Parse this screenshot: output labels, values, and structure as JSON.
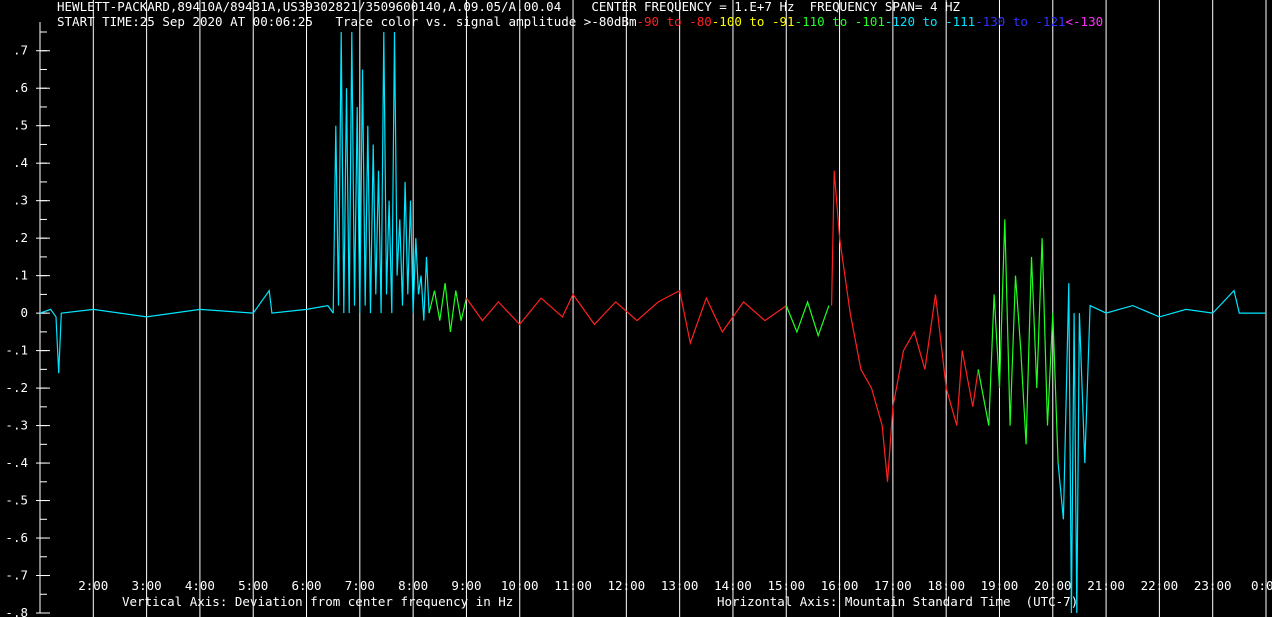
{
  "header": {
    "line1": "HEWLETT-PACKARD,89410A/89431A,US39302821/3509600140,A.09.05/A.00.04    CENTER FREQUENCY = 1.E+7 Hz  FREQUENCY SPAN= 4 HZ",
    "start_time": "START TIME:25 Sep 2020 AT 00:06:25",
    "color_key_label": "Trace color vs. signal amplitude",
    "color_key": [
      {
        "text": " >-80dBm",
        "color": "#ffffff"
      },
      {
        "text": "-90 to -80",
        "color": "#ff2020"
      },
      {
        "text": "-100 to -91",
        "color": "#ffff00"
      },
      {
        "text": "-110 to -101",
        "color": "#20ff20"
      },
      {
        "text": "-120 to -111",
        "color": "#00e5ff"
      },
      {
        "text": "-130 to -121",
        "color": "#3030ff"
      },
      {
        "text": "<-130",
        "color": "#ff30ff"
      }
    ]
  },
  "footer": {
    "vertical_axis": "Vertical Axis: Deviation from center frequency in Hz",
    "horizontal_axis": "Horizontal Axis: Mountain Standard Time  (UTC-7)"
  },
  "chart_data": {
    "type": "line",
    "ylim": [
      -0.8,
      0.75
    ],
    "xlim": [
      1.0,
      24.0
    ],
    "y_ticks": [
      ".7",
      ".6",
      ".5",
      ".4",
      ".3",
      ".2",
      ".1",
      "0",
      "-.1",
      "-.2",
      "-.3",
      "-.4",
      "-.5",
      "-.6",
      "-.7",
      "-.8"
    ],
    "y_tick_values": [
      0.7,
      0.6,
      0.5,
      0.4,
      0.3,
      0.2,
      0.1,
      0,
      -0.1,
      -0.2,
      -0.3,
      -0.4,
      -0.5,
      -0.6,
      -0.7,
      -0.8
    ],
    "x_ticks": [
      "2:00",
      "3:00",
      "4:00",
      "5:00",
      "6:00",
      "7:00",
      "8:00",
      "9:00",
      "10:00",
      "11:00",
      "12:00",
      "13:00",
      "14:00",
      "15:00",
      "16:00",
      "17:00",
      "18:00",
      "19:00",
      "20:00",
      "21:00",
      "22:00",
      "23:00",
      "0:00"
    ],
    "x_tick_values": [
      2,
      3,
      4,
      5,
      6,
      7,
      8,
      9,
      10,
      11,
      12,
      13,
      14,
      15,
      16,
      17,
      18,
      19,
      20,
      21,
      22,
      23,
      24
    ],
    "grid": "vertical",
    "trace_segments": [
      {
        "color": "#00e5ff",
        "points": [
          [
            1.0,
            0.0
          ],
          [
            1.2,
            0.01
          ],
          [
            1.3,
            -0.01
          ],
          [
            1.35,
            -0.16
          ],
          [
            1.4,
            0.0
          ],
          [
            2.0,
            0.01
          ],
          [
            3.0,
            -0.01
          ],
          [
            4.0,
            0.01
          ],
          [
            5.0,
            0.0
          ],
          [
            5.3,
            0.06
          ],
          [
            5.35,
            0.0
          ],
          [
            6.0,
            0.01
          ],
          [
            6.4,
            0.02
          ],
          [
            6.5,
            0.0
          ]
        ]
      },
      {
        "color": "#00e5ff",
        "points": [
          [
            6.5,
            0.0
          ],
          [
            6.55,
            0.5
          ],
          [
            6.6,
            0.02
          ],
          [
            6.65,
            0.75
          ],
          [
            6.7,
            0.0
          ],
          [
            6.75,
            0.6
          ],
          [
            6.8,
            0.0
          ],
          [
            6.85,
            0.75
          ],
          [
            6.9,
            0.02
          ],
          [
            6.95,
            0.55
          ],
          [
            7.0,
            0.0
          ],
          [
            7.05,
            0.65
          ],
          [
            7.1,
            0.02
          ],
          [
            7.15,
            0.5
          ],
          [
            7.2,
            0.0
          ],
          [
            7.25,
            0.45
          ],
          [
            7.3,
            0.05
          ],
          [
            7.35,
            0.38
          ],
          [
            7.4,
            0.0
          ],
          [
            7.45,
            0.75
          ],
          [
            7.5,
            0.05
          ],
          [
            7.55,
            0.3
          ],
          [
            7.6,
            0.0
          ],
          [
            7.65,
            0.75
          ],
          [
            7.7,
            0.1
          ],
          [
            7.75,
            0.25
          ],
          [
            7.8,
            0.02
          ],
          [
            7.85,
            0.35
          ],
          [
            7.9,
            0.05
          ],
          [
            7.95,
            0.3
          ],
          [
            8.0,
            0.0
          ],
          [
            8.05,
            0.2
          ],
          [
            8.1,
            0.05
          ],
          [
            8.15,
            0.1
          ],
          [
            8.2,
            -0.02
          ],
          [
            8.25,
            0.15
          ],
          [
            8.3,
            0.0
          ]
        ]
      },
      {
        "color": "#20ff20",
        "points": [
          [
            8.3,
            0.0
          ],
          [
            8.4,
            0.06
          ],
          [
            8.5,
            -0.02
          ],
          [
            8.6,
            0.08
          ],
          [
            8.7,
            -0.05
          ],
          [
            8.8,
            0.06
          ],
          [
            8.9,
            -0.02
          ],
          [
            9.0,
            0.04
          ]
        ]
      },
      {
        "color": "#ff2020",
        "points": [
          [
            9.0,
            0.04
          ],
          [
            9.3,
            -0.02
          ],
          [
            9.6,
            0.03
          ],
          [
            10.0,
            -0.03
          ],
          [
            10.4,
            0.04
          ],
          [
            10.8,
            -0.01
          ],
          [
            11.0,
            0.05
          ],
          [
            11.4,
            -0.03
          ],
          [
            11.8,
            0.03
          ],
          [
            12.2,
            -0.02
          ],
          [
            12.6,
            0.03
          ],
          [
            13.0,
            0.06
          ],
          [
            13.2,
            -0.08
          ],
          [
            13.5,
            0.04
          ],
          [
            13.8,
            -0.05
          ],
          [
            14.2,
            0.03
          ],
          [
            14.6,
            -0.02
          ],
          [
            15.0,
            0.02
          ]
        ]
      },
      {
        "color": "#20ff20",
        "points": [
          [
            15.0,
            0.02
          ],
          [
            15.2,
            -0.05
          ],
          [
            15.4,
            0.03
          ],
          [
            15.6,
            -0.06
          ],
          [
            15.8,
            0.02
          ]
        ]
      },
      {
        "color": "#ff2020",
        "points": [
          [
            15.85,
            0.02
          ],
          [
            15.9,
            0.38
          ],
          [
            16.0,
            0.2
          ],
          [
            16.1,
            0.1
          ],
          [
            16.2,
            0.0
          ],
          [
            16.4,
            -0.15
          ],
          [
            16.6,
            -0.2
          ],
          [
            16.8,
            -0.3
          ],
          [
            16.9,
            -0.45
          ],
          [
            17.0,
            -0.25
          ],
          [
            17.2,
            -0.1
          ],
          [
            17.4,
            -0.05
          ],
          [
            17.6,
            -0.15
          ],
          [
            17.8,
            0.05
          ],
          [
            18.0,
            -0.2
          ],
          [
            18.2,
            -0.3
          ],
          [
            18.3,
            -0.1
          ],
          [
            18.5,
            -0.25
          ],
          [
            18.6,
            -0.15
          ]
        ]
      },
      {
        "color": "#20ff20",
        "points": [
          [
            18.6,
            -0.15
          ],
          [
            18.8,
            -0.3
          ],
          [
            18.9,
            0.05
          ],
          [
            19.0,
            -0.2
          ],
          [
            19.1,
            0.25
          ],
          [
            19.2,
            -0.3
          ],
          [
            19.3,
            0.1
          ],
          [
            19.4,
            -0.1
          ],
          [
            19.5,
            -0.35
          ],
          [
            19.6,
            0.15
          ],
          [
            19.7,
            -0.2
          ],
          [
            19.8,
            0.2
          ],
          [
            19.9,
            -0.3
          ],
          [
            20.0,
            0.0
          ],
          [
            20.1,
            -0.4
          ]
        ]
      },
      {
        "color": "#00e5ff",
        "points": [
          [
            20.1,
            -0.4
          ],
          [
            20.2,
            -0.55
          ],
          [
            20.3,
            0.08
          ],
          [
            20.35,
            -0.8
          ],
          [
            20.4,
            0.0
          ],
          [
            20.45,
            -0.8
          ],
          [
            20.5,
            0.0
          ],
          [
            20.6,
            -0.4
          ],
          [
            20.7,
            0.02
          ],
          [
            21.0,
            0.0
          ],
          [
            21.5,
            0.02
          ],
          [
            22.0,
            -0.01
          ],
          [
            22.5,
            0.01
          ],
          [
            23.0,
            0.0
          ],
          [
            23.4,
            0.06
          ],
          [
            23.5,
            0.0
          ],
          [
            24.0,
            0.0
          ]
        ]
      }
    ]
  }
}
